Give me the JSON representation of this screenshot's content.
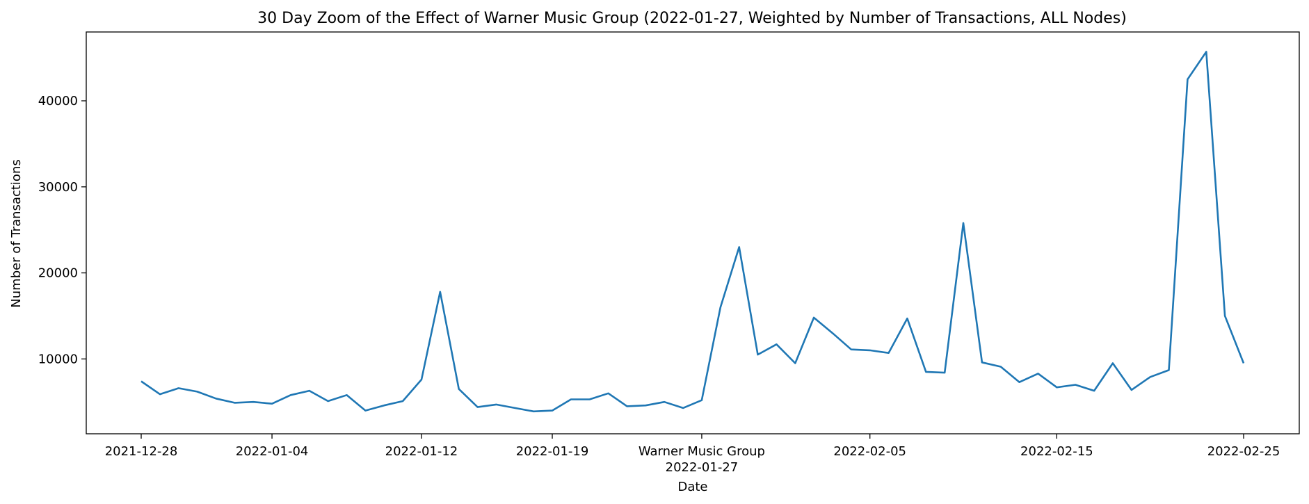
{
  "chart_data": {
    "type": "line",
    "title": "30 Day Zoom of the Effect of Warner Music Group (2022-01-27, Weighted by Number of Transactions, ALL Nodes)",
    "xlabel": "Date",
    "ylabel": "Number of Transactions",
    "ylim": [
      1300,
      48000
    ],
    "grid": false,
    "line_color": "#1f77b4",
    "series": [
      {
        "x": [
          "2021-12-28",
          "2021-12-29",
          "2021-12-30",
          "2021-12-31",
          "2022-01-01",
          "2022-01-02",
          "2022-01-03",
          "2022-01-04",
          "2022-01-05",
          "2022-01-06",
          "2022-01-07",
          "2022-01-08",
          "2022-01-09",
          "2022-01-10",
          "2022-01-11",
          "2022-01-12",
          "2022-01-13",
          "2022-01-14",
          "2022-01-15",
          "2022-01-16",
          "2022-01-17",
          "2022-01-18",
          "2022-01-19",
          "2022-01-20",
          "2022-01-21",
          "2022-01-22",
          "2022-01-23",
          "2022-01-24",
          "2022-01-25",
          "2022-01-26",
          "2022-01-27",
          "2022-01-28",
          "2022-01-29",
          "2022-01-30",
          "2022-01-31",
          "2022-02-01",
          "2022-02-02",
          "2022-02-03",
          "2022-02-04",
          "2022-02-05",
          "2022-02-06",
          "2022-02-07",
          "2022-02-08",
          "2022-02-09",
          "2022-02-10",
          "2022-02-11",
          "2022-02-12",
          "2022-02-13",
          "2022-02-14",
          "2022-02-15",
          "2022-02-16",
          "2022-02-17",
          "2022-02-18",
          "2022-02-19",
          "2022-02-20",
          "2022-02-21",
          "2022-02-22",
          "2022-02-23",
          "2022-02-24",
          "2022-02-25"
        ],
        "values": [
          7400,
          5900,
          6600,
          6200,
          5400,
          4900,
          5000,
          4800,
          5800,
          6300,
          5100,
          5800,
          4000,
          4600,
          5100,
          7600,
          17800,
          6500,
          4400,
          4700,
          4300,
          3900,
          4000,
          5300,
          5300,
          6000,
          4500,
          4600,
          5000,
          4300,
          5200,
          16000,
          23000,
          10500,
          11700,
          9500,
          14800,
          13000,
          11100,
          11000,
          10700,
          14700,
          8500,
          8400,
          25800,
          9600,
          9100,
          7300,
          8300,
          6700,
          7000,
          6300,
          9500,
          6400,
          7900,
          8700,
          42500,
          45700,
          15000,
          9500
        ]
      }
    ],
    "xticks": [
      {
        "date": "2021-12-28",
        "label": "2021-12-28",
        "sublabel": ""
      },
      {
        "date": "2022-01-04",
        "label": "2022-01-04",
        "sublabel": ""
      },
      {
        "date": "2022-01-12",
        "label": "2022-01-12",
        "sublabel": ""
      },
      {
        "date": "2022-01-19",
        "label": "2022-01-19",
        "sublabel": ""
      },
      {
        "date": "2022-01-27",
        "label": "Warner Music Group",
        "sublabel": "2022-01-27"
      },
      {
        "date": "2022-02-05",
        "label": "2022-02-05",
        "sublabel": ""
      },
      {
        "date": "2022-02-15",
        "label": "2022-02-15",
        "sublabel": ""
      },
      {
        "date": "2022-02-25",
        "label": "2022-02-25",
        "sublabel": ""
      }
    ],
    "yticks": [
      {
        "value": 10000,
        "label": "10000"
      },
      {
        "value": 20000,
        "label": "20000"
      },
      {
        "value": 30000,
        "label": "30000"
      },
      {
        "value": 40000,
        "label": "40000"
      }
    ]
  }
}
